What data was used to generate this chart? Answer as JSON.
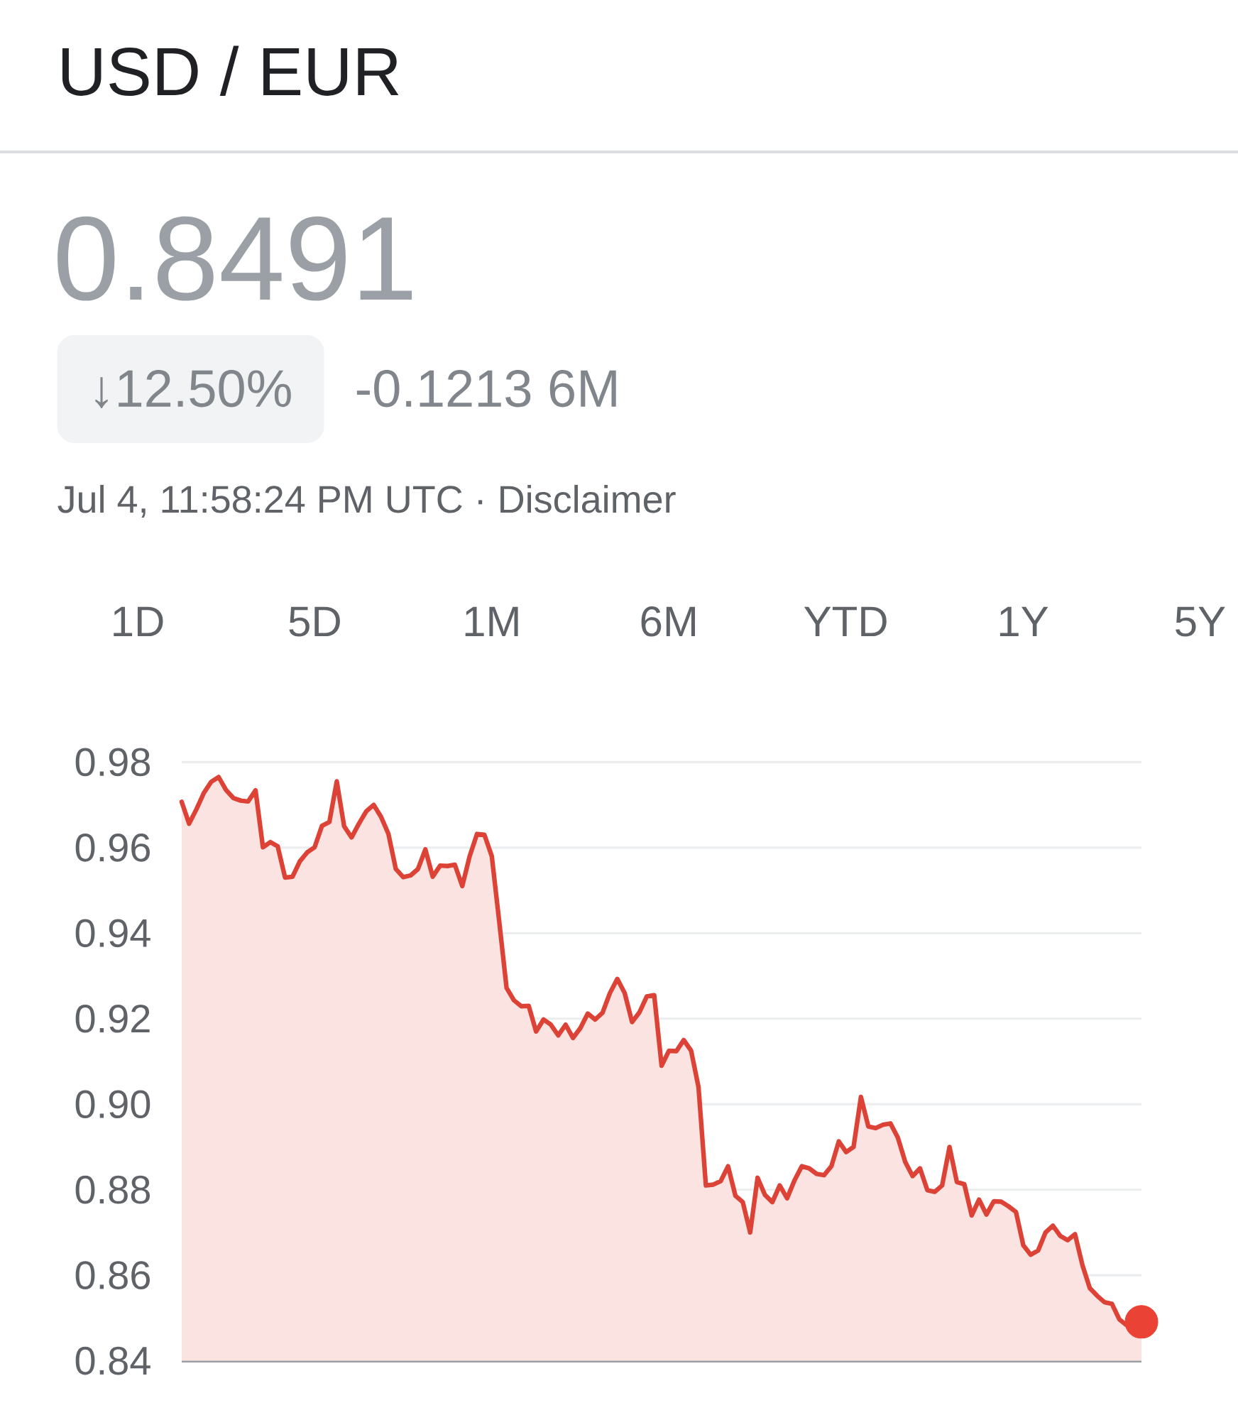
{
  "chart_data": {
    "type": "area",
    "title": "USD / EUR",
    "subtitle": "0.8491",
    "annotations": [
      "↓12.50%",
      "-0.1213 6M",
      "Jul 4, 11:58:24 PM UTC · Disclaimer",
      "1D",
      "5D",
      "1M",
      "6M",
      "YTD",
      "1Y",
      "5Y"
    ],
    "categories": [
      null,
      null,
      null,
      null,
      null,
      null,
      null,
      null,
      null,
      null,
      null,
      null,
      null,
      null,
      null,
      null,
      null,
      null,
      null,
      null,
      null,
      null,
      null,
      null,
      null,
      null,
      null,
      null,
      null,
      null,
      null,
      null,
      null,
      null,
      null,
      null,
      null,
      null,
      null,
      null,
      null,
      null,
      null,
      null,
      null,
      null,
      null,
      null,
      null,
      null,
      null,
      null,
      null,
      null,
      null,
      null,
      null,
      null,
      null,
      null,
      null,
      null,
      null,
      null,
      null,
      null,
      null,
      null,
      null,
      null,
      null,
      null,
      null,
      null,
      null,
      null,
      null,
      null,
      null,
      null,
      null,
      null,
      null,
      null,
      null,
      null,
      null,
      null,
      null,
      null,
      null,
      null,
      null,
      null,
      null,
      null,
      null,
      null,
      null,
      null,
      null,
      null,
      null,
      null,
      null,
      null,
      null,
      null,
      null,
      null,
      null,
      null,
      null,
      null,
      null,
      null,
      null,
      null,
      null,
      null,
      null,
      null,
      null,
      null,
      null,
      null,
      null,
      null,
      null,
      null,
      null
    ],
    "series": [
      {
        "color": "#dd4237",
        "values": [
          0.9707,
          0.9656,
          0.969,
          0.9728,
          0.9754,
          0.9765,
          0.9735,
          0.9716,
          0.971,
          0.9708,
          0.9734,
          0.9601,
          0.9613,
          0.9603,
          0.953,
          0.9532,
          0.9568,
          0.9589,
          0.9601,
          0.9651,
          0.966,
          0.9755,
          0.965,
          0.9624,
          0.9656,
          0.9685,
          0.97,
          0.9672,
          0.9632,
          0.955,
          0.9531,
          0.9535,
          0.955,
          0.9596,
          0.9532,
          0.9558,
          0.9557,
          0.956,
          0.951,
          0.958,
          0.9632,
          0.963,
          0.958,
          0.9428,
          0.9272,
          0.9243,
          0.9229,
          0.923,
          0.917,
          0.9198,
          0.9186,
          0.9161,
          0.9186,
          0.9155,
          0.9178,
          0.9212,
          0.9198,
          0.9214,
          0.926,
          0.9293,
          0.926,
          0.9192,
          0.9215,
          0.9252,
          0.9255,
          0.909,
          0.9125,
          0.9124,
          0.915,
          0.9125,
          0.904,
          0.881,
          0.8812,
          0.882,
          0.8855,
          0.8786,
          0.8771,
          0.87,
          0.8828,
          0.8788,
          0.8771,
          0.881,
          0.878,
          0.8822,
          0.8855,
          0.885,
          0.8837,
          0.8834,
          0.8855,
          0.8913,
          0.8888,
          0.89,
          0.9017,
          0.8948,
          0.8944,
          0.8952,
          0.8955,
          0.8922,
          0.8865,
          0.8832,
          0.885,
          0.8799,
          0.8795,
          0.881,
          0.89,
          0.8818,
          0.8813,
          0.874,
          0.8777,
          0.8742,
          0.8773,
          0.8772,
          0.8761,
          0.8748,
          0.867,
          0.8648,
          0.8658,
          0.87,
          0.8716,
          0.8692,
          0.8682,
          0.8696,
          0.8624,
          0.857,
          0.8552,
          0.8537,
          0.8533,
          0.8497,
          0.8483,
          0.8485,
          0.8491
        ]
      },
      {
        "type": "scatter",
        "marker": "circle",
        "color": "#ea4335",
        "values": [
          null,
          null,
          null,
          null,
          null,
          null,
          null,
          null,
          null,
          null,
          null,
          null,
          null,
          null,
          null,
          null,
          null,
          null,
          null,
          null,
          null,
          null,
          null,
          null,
          null,
          null,
          null,
          null,
          null,
          null,
          null,
          null,
          null,
          null,
          null,
          null,
          null,
          null,
          null,
          null,
          null,
          null,
          null,
          null,
          null,
          null,
          null,
          null,
          null,
          null,
          null,
          null,
          null,
          null,
          null,
          null,
          null,
          null,
          null,
          null,
          null,
          null,
          null,
          null,
          null,
          null,
          null,
          null,
          null,
          null,
          null,
          null,
          null,
          null,
          null,
          null,
          null,
          null,
          null,
          null,
          null,
          null,
          null,
          null,
          null,
          null,
          null,
          null,
          null,
          null,
          null,
          null,
          null,
          null,
          null,
          null,
          null,
          null,
          null,
          null,
          null,
          null,
          null,
          null,
          null,
          null,
          null,
          null,
          null,
          null,
          null,
          null,
          null,
          null,
          null,
          null,
          null,
          null,
          null,
          null,
          null,
          null,
          null,
          null,
          null,
          null,
          null,
          null,
          null,
          null,
          0.8491
        ]
      }
    ],
    "ylim": [
      0.84,
      0.98
    ],
    "yticks": [
      0.98,
      0.96,
      0.94,
      0.92,
      {
        "value": 0.9,
        "label": "0.90"
      },
      0.88,
      0.86,
      0.84
    ],
    "grid": "y"
  }
}
